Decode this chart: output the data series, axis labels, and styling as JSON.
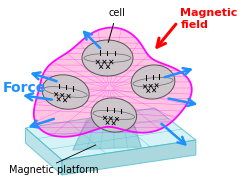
{
  "bg_color": "#ffffff",
  "force_label": "Force",
  "force_color": "#1E90FF",
  "magnetic_field_label": "Magnetic\nfield",
  "magnetic_field_color": "#FF0000",
  "cell_label": "cell",
  "platform_label": "Magnetic platform",
  "blob_color": "#FF69B4",
  "blob_edge_color": "#FF00FF",
  "platform_top_color": "#C8F0F5",
  "platform_side_color": "#A0D8E0",
  "platform_edge_color": "#40B8C8",
  "cell_face_color": "#C8C8C8",
  "cell_edge_color": "#444444",
  "arrow_color": "#1E90FF",
  "mag_arrow_color": "#FF0000",
  "force_fontsize": 10,
  "mag_fontsize": 8,
  "cell_fontsize": 7,
  "platform_fontsize": 7
}
